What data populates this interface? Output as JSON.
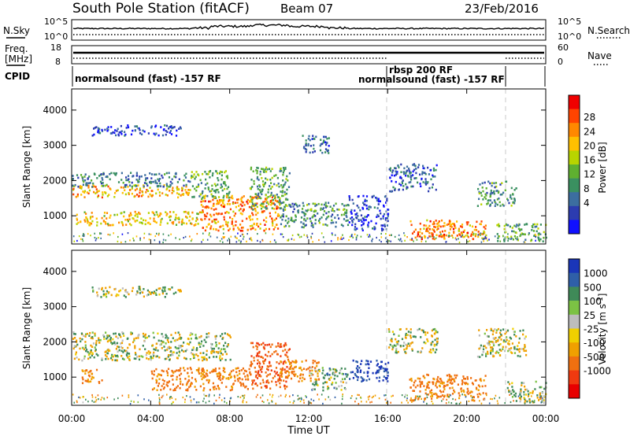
{
  "header": {
    "station": "South Pole Station (fitACF)",
    "beam": "Beam 07",
    "date": "23/Feb/2016"
  },
  "sky_panel": {
    "left_label": "N.Sky",
    "left_ticks": [
      "10^5",
      "10^0"
    ],
    "right_label": "N.Search",
    "right_ticks": [
      "10^5",
      "10^0"
    ]
  },
  "freq_panel": {
    "left_label_1": "Freq.",
    "left_label_2": "[MHz]",
    "left_ticks": [
      "18",
      "8"
    ],
    "right_label": "Nave",
    "right_ticks": [
      "60",
      "0"
    ]
  },
  "cpid_panel": {
    "label": "CPID",
    "segments": [
      {
        "start": 0,
        "end": 16,
        "text": "normalsound (fast) -157 RF"
      },
      {
        "start": 16,
        "end": 22,
        "text": "rbsp 200 RF"
      },
      {
        "start": 16,
        "end": 22,
        "text": "normalsound (fast) -157 RF"
      }
    ]
  },
  "time_axis": {
    "label": "Time UT",
    "ticks": [
      "00:00",
      "04:00",
      "08:00",
      "12:00",
      "16:00",
      "20:00",
      "00:00"
    ],
    "range_hours": [
      0,
      24
    ],
    "mode_change_hours": [
      16,
      22
    ]
  },
  "power_scale": {
    "label": "Power [dB]",
    "ticks": [
      "28",
      "24",
      "20",
      "16",
      "12",
      "8",
      "4"
    ],
    "colors": [
      "#f00000",
      "#ff4400",
      "#ff8800",
      "#ffc000",
      "#b8d400",
      "#5fb030",
      "#3a9060",
      "#3c6ea0",
      "#2c3cb0",
      "#1010ff"
    ]
  },
  "velocity_scale": {
    "label": "Velocity [m s^-1]",
    "ticks": [
      "1000",
      "500",
      "100",
      "25",
      "-25",
      "-100",
      "-500",
      "-1000"
    ],
    "colors": [
      "#1a36b8",
      "#2f5fa8",
      "#3f8a58",
      "#7cc244",
      "#bdbdbd",
      "#f0d000",
      "#f0a000",
      "#f07010",
      "#f03a10",
      "#e80000"
    ]
  },
  "chart_data": [
    {
      "type": "heatmap",
      "title": "",
      "xlabel": "Time UT",
      "ylabel": "Slant Range [km]",
      "yticks": [
        1000,
        2000,
        3000,
        4000
      ],
      "ylim": [
        200,
        4600
      ],
      "xlim": [
        0,
        24
      ],
      "colorbar": "Power [dB]",
      "echo_regions": [
        {
          "t": [
            0.0,
            6.0
          ],
          "range_km": [
            1550,
            1900
          ],
          "value_db": 22
        },
        {
          "t": [
            6.0,
            8.0
          ],
          "range_km": [
            1500,
            2300
          ],
          "value_db": 14
        },
        {
          "t": [
            0.0,
            6.0
          ],
          "range_km": [
            1850,
            2250
          ],
          "value_db": 10
        },
        {
          "t": [
            0.2,
            6.5
          ],
          "range_km": [
            750,
            1150
          ],
          "value_db": 20
        },
        {
          "t": [
            6.5,
            10.5
          ],
          "range_km": [
            600,
            1600
          ],
          "value_db": 24
        },
        {
          "t": [
            9.0,
            11.0
          ],
          "range_km": [
            1200,
            2400
          ],
          "value_db": 14
        },
        {
          "t": [
            10.5,
            14.0
          ],
          "range_km": [
            700,
            1400
          ],
          "value_db": 12
        },
        {
          "t": [
            11.5,
            13.0
          ],
          "range_km": [
            2800,
            3300
          ],
          "value_db": 8
        },
        {
          "t": [
            14.0,
            16.0
          ],
          "range_km": [
            600,
            1600
          ],
          "value_db": 6
        },
        {
          "t": [
            16.0,
            18.5
          ],
          "range_km": [
            1700,
            2500
          ],
          "value_db": 8
        },
        {
          "t": [
            17.0,
            21.0
          ],
          "range_km": [
            350,
            900
          ],
          "value_db": 24
        },
        {
          "t": [
            20.5,
            22.5
          ],
          "range_km": [
            1300,
            2000
          ],
          "value_db": 12
        },
        {
          "t": [
            21.5,
            24.0
          ],
          "range_km": [
            300,
            800
          ],
          "value_db": 14
        },
        {
          "t": [
            1.0,
            5.5
          ],
          "range_km": [
            3300,
            3600
          ],
          "value_db": 6
        }
      ]
    },
    {
      "type": "heatmap",
      "title": "",
      "xlabel": "Time UT",
      "ylabel": "Slant Range [km]",
      "yticks": [
        1000,
        2000,
        3000,
        4000
      ],
      "ylim": [
        200,
        4600
      ],
      "xlim": [
        0,
        24
      ],
      "colorbar": "Velocity [m s^-1]",
      "echo_regions": [
        {
          "t": [
            0.0,
            6.0
          ],
          "range_km": [
            1500,
            2300
          ],
          "value_ms": 0
        },
        {
          "t": [
            6.0,
            8.0
          ],
          "range_km": [
            1500,
            2300
          ],
          "value_ms": 0
        },
        {
          "t": [
            1.0,
            5.5
          ],
          "range_km": [
            3300,
            3600
          ],
          "value_ms": 0
        },
        {
          "t": [
            4.0,
            9.0
          ],
          "range_km": [
            650,
            1300
          ],
          "value_ms": -400
        },
        {
          "t": [
            9.0,
            11.0
          ],
          "range_km": [
            700,
            2000
          ],
          "value_ms": -700
        },
        {
          "t": [
            10.5,
            12.5
          ],
          "range_km": [
            900,
            1500
          ],
          "value_ms": -300
        },
        {
          "t": [
            12.0,
            14.0
          ],
          "range_km": [
            650,
            1300
          ],
          "value_ms": 120
        },
        {
          "t": [
            14.0,
            16.0
          ],
          "range_km": [
            900,
            1500
          ],
          "value_ms": 800
        },
        {
          "t": [
            16.0,
            18.5
          ],
          "range_km": [
            1700,
            2400
          ],
          "value_ms": 0
        },
        {
          "t": [
            17.0,
            21.0
          ],
          "range_km": [
            350,
            1100
          ],
          "value_ms": -400
        },
        {
          "t": [
            20.5,
            23.0
          ],
          "range_km": [
            1600,
            2400
          ],
          "value_ms": -60
        },
        {
          "t": [
            22.0,
            24.0
          ],
          "range_km": [
            300,
            900
          ],
          "value_ms": 60
        },
        {
          "t": [
            0.5,
            1.5
          ],
          "range_km": [
            850,
            1250
          ],
          "value_ms": -300
        }
      ]
    }
  ]
}
